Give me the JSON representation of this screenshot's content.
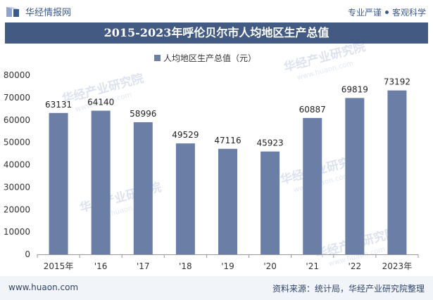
{
  "header": {
    "brand": "华经情报网",
    "slogan_left": "专业严谨",
    "slogan_right": "客观科学"
  },
  "footer": {
    "url": "www.huaon.com",
    "source": "资料来源：统计局，华经产业研究院整理"
  },
  "watermarks": {
    "text": "华经产业研究院",
    "url": "www.huaon.com"
  },
  "colors": {
    "title_bg": "#435a82",
    "bar": "#6b7ea6",
    "axis_text": "#333333",
    "header_text": "#3b5a8c"
  },
  "chart_data": {
    "type": "bar",
    "title": "2015-2023年呼伦贝尔市人均地区生产总值",
    "legend": {
      "label": "人均地区生产总值（元）",
      "position": "top"
    },
    "categories": [
      "2015年",
      "'16",
      "'17",
      "'18",
      "'19",
      "'20",
      "'21",
      "'22",
      "2023年"
    ],
    "series": [
      {
        "name": "人均地区生产总值（元）",
        "values": [
          63131,
          64140,
          58996,
          49529,
          47116,
          45923,
          60887,
          69819,
          73192
        ]
      }
    ],
    "ylim": [
      0,
      80000
    ],
    "yticks": [
      0,
      10000,
      20000,
      30000,
      40000,
      50000,
      60000,
      70000,
      80000
    ],
    "grid": false
  }
}
